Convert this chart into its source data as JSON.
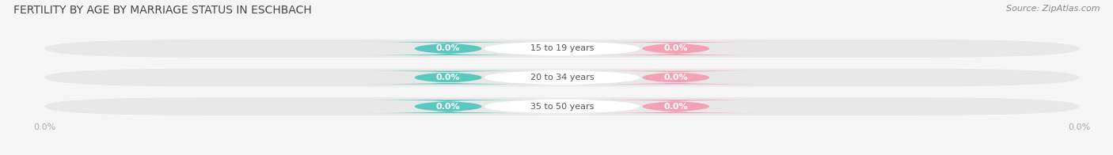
{
  "title": "FERTILITY BY AGE BY MARRIAGE STATUS IN ESCHBACH",
  "source": "Source: ZipAtlas.com",
  "categories": [
    "15 to 19 years",
    "20 to 34 years",
    "35 to 50 years"
  ],
  "married_values": [
    0.0,
    0.0,
    0.0
  ],
  "unmarried_values": [
    0.0,
    0.0,
    0.0
  ],
  "married_color": "#5bc8c0",
  "unmarried_color": "#f4a0b5",
  "bar_bg_color": "#e8e8e8",
  "center_bg_color": "#f5f5f5",
  "title_fontsize": 10,
  "label_fontsize": 8,
  "tick_fontsize": 8,
  "source_fontsize": 8,
  "legend_fontsize": 9,
  "bg_color": "#f5f5f5",
  "value_text_color": "#ffffff",
  "category_text_color": "#555555",
  "tick_color": "#aaaaaa"
}
